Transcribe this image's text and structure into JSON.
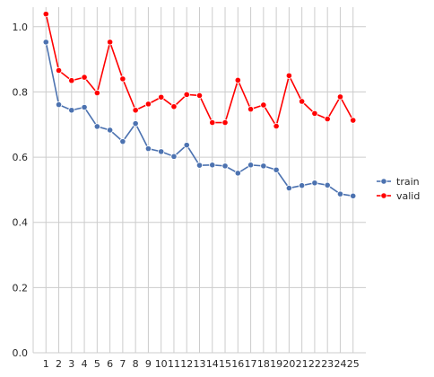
{
  "chart_data": {
    "type": "line",
    "title": "",
    "xlabel": "",
    "ylabel": "",
    "x": [
      1,
      2,
      3,
      4,
      5,
      6,
      7,
      8,
      9,
      10,
      11,
      12,
      13,
      14,
      15,
      16,
      17,
      18,
      19,
      20,
      21,
      22,
      23,
      24,
      25
    ],
    "xlim": [
      0,
      26
    ],
    "ylim": [
      0,
      1.06
    ],
    "yticks": [
      0.0,
      0.2,
      0.4,
      0.6,
      0.8,
      1.0
    ],
    "ytick_labels": [
      "0.0",
      "0.2",
      "0.4",
      "0.6",
      "0.8",
      "1.0"
    ],
    "grid": true,
    "legend_position": "center-right outside",
    "series": [
      {
        "name": "train",
        "color": "#4c72b0",
        "marker": "circle",
        "values": [
          0.953,
          0.761,
          0.744,
          0.753,
          0.694,
          0.683,
          0.648,
          0.703,
          0.626,
          0.617,
          0.602,
          0.637,
          0.575,
          0.576,
          0.573,
          0.551,
          0.576,
          0.573,
          0.561,
          0.505,
          0.513,
          0.521,
          0.514,
          0.487,
          0.481
        ]
      },
      {
        "name": "valid",
        "color": "#ff0000",
        "marker": "circle",
        "values": [
          1.039,
          0.866,
          0.835,
          0.845,
          0.797,
          0.953,
          0.84,
          0.744,
          0.763,
          0.784,
          0.755,
          0.792,
          0.789,
          0.706,
          0.706,
          0.836,
          0.747,
          0.76,
          0.695,
          0.85,
          0.771,
          0.734,
          0.717,
          0.785,
          0.713
        ]
      }
    ]
  }
}
